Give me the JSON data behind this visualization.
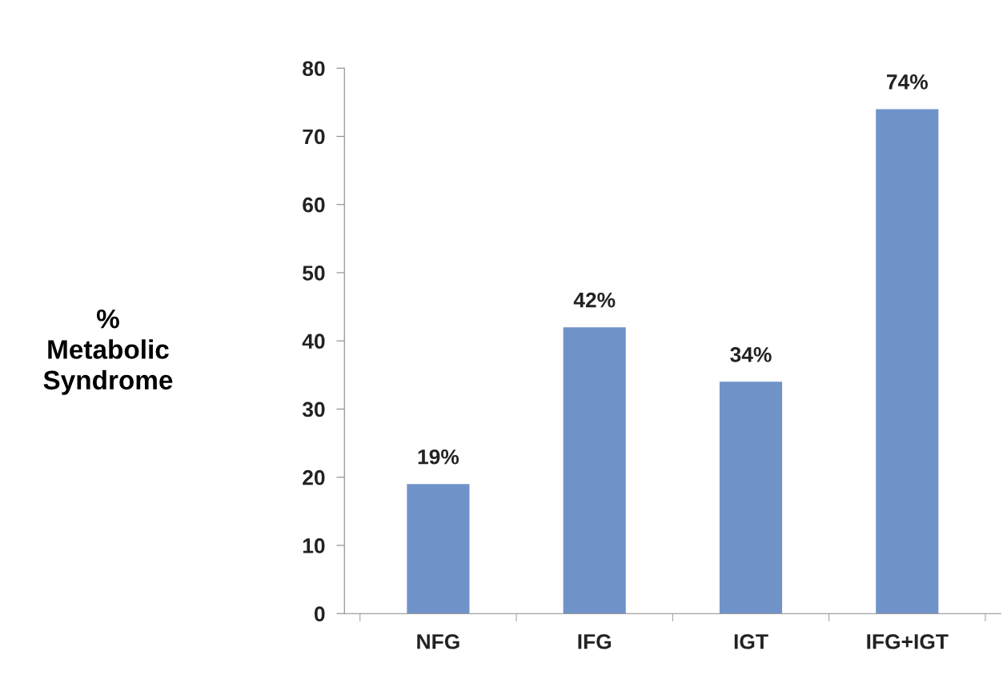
{
  "chart_data": {
    "type": "bar",
    "ylabel": "%\nMetabolic\nSyndrome",
    "categories": [
      "NFG",
      "IFG",
      "IGT",
      "IFG+IGT"
    ],
    "values": [
      19,
      42,
      34,
      74
    ],
    "color": "#6f93c9",
    "value_labels": [
      "19%",
      "42%",
      "34%",
      "74%"
    ],
    "ylim": [
      0,
      80
    ],
    "yticks": [
      0,
      10,
      20,
      30,
      40,
      50,
      60,
      70,
      80
    ],
    "grid": false,
    "legend": false
  }
}
